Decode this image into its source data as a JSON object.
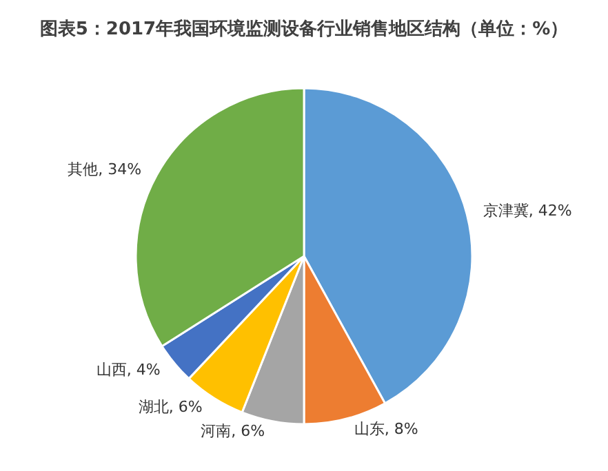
{
  "chart_data": {
    "type": "pie",
    "title": "图表5：2017年我国环境监测设备行业销售地区结构（单位：%）",
    "categories": [
      "京津冀",
      "山东",
      "河南",
      "湖北",
      "山西",
      "其他"
    ],
    "values": [
      42,
      8,
      6,
      6,
      4,
      34
    ],
    "value_labels": [
      "42%",
      "8%",
      "6%",
      "6%",
      "4%",
      "34%"
    ],
    "colors": [
      "#5b9bd5",
      "#ed7d31",
      "#a5a5a5",
      "#ffc000",
      "#4472c4",
      "#70ad47"
    ],
    "legend": false
  }
}
